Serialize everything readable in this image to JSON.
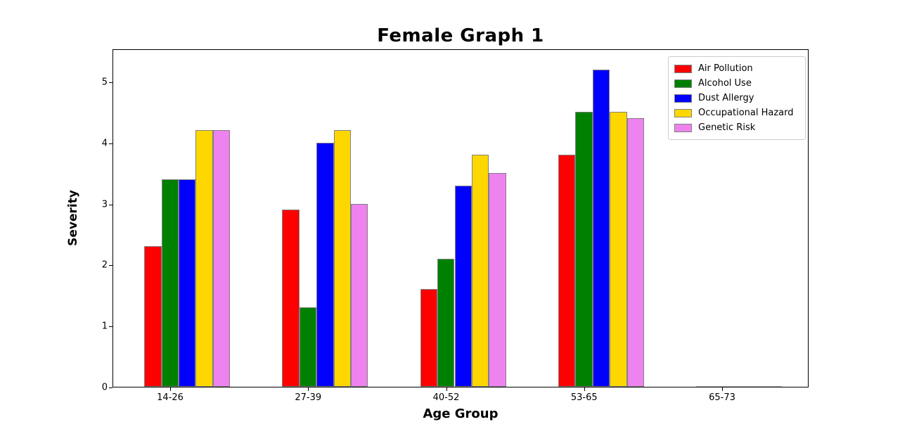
{
  "chart_data": {
    "type": "bar",
    "title": "Female Graph 1",
    "xlabel": "Age Group",
    "ylabel": "Severity",
    "categories": [
      "14-26",
      "27-39",
      "40-52",
      "53-65",
      "65-73"
    ],
    "series": [
      {
        "name": "Air Pollution",
        "color": "#ff0000",
        "values": [
          2.3,
          2.9,
          1.6,
          3.8,
          0
        ]
      },
      {
        "name": "Alcohol Use",
        "color": "#008000",
        "values": [
          3.4,
          1.3,
          2.1,
          4.5,
          0
        ]
      },
      {
        "name": "Dust Allergy",
        "color": "#0000ff",
        "values": [
          3.4,
          4.0,
          3.3,
          5.2,
          0
        ]
      },
      {
        "name": "Occupational Hazard",
        "color": "#ffd700",
        "values": [
          4.2,
          4.2,
          3.8,
          4.5,
          0
        ]
      },
      {
        "name": "Genetic Risk",
        "color": "#ee82ee",
        "values": [
          4.2,
          3.0,
          3.5,
          4.4,
          0
        ]
      }
    ],
    "ylim": [
      0,
      5.54
    ],
    "yticks": [
      0,
      1,
      2,
      3,
      4,
      5
    ],
    "grid": false,
    "legend_position": "upper right",
    "bar_edge_color": "#808080",
    "axis_color": "#000000",
    "background_color": "#ffffff"
  }
}
